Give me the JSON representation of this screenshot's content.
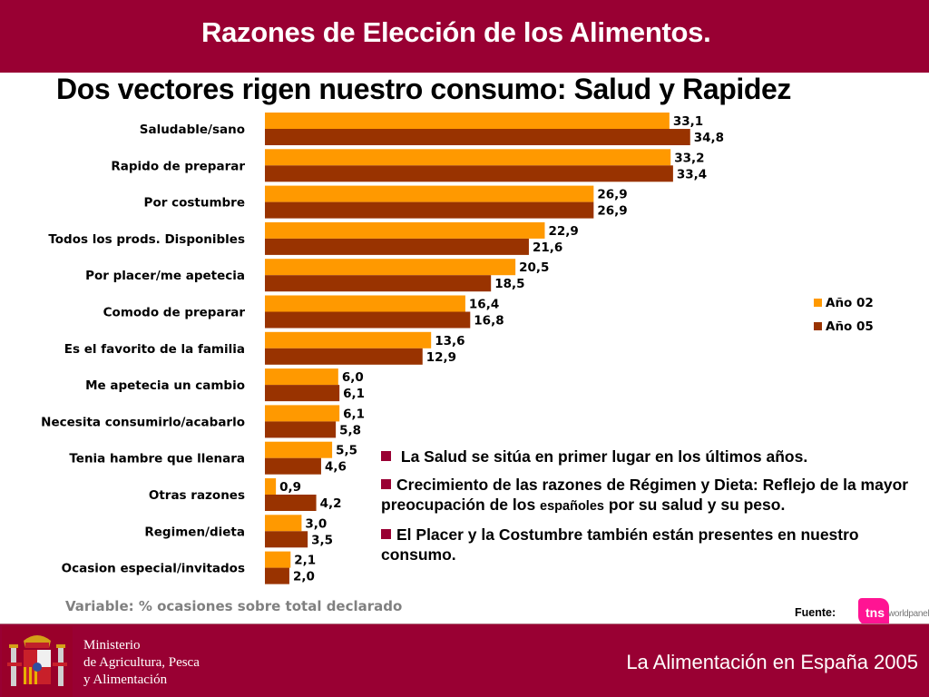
{
  "header": {
    "title": "Razones de Elección de los Alimentos.",
    "subtitle": "Dos vectores rigen nuestro consumo: Salud y Rapidez"
  },
  "colors": {
    "brand": "#990033",
    "series_02": "#ff9900",
    "series_05": "#993300",
    "tns_pink": "#ff1493"
  },
  "chart_data": {
    "type": "bar",
    "orientation": "horizontal",
    "title": "",
    "xlabel": "",
    "ylabel": "",
    "categories": [
      "Saludable/sano",
      "Rapido de preparar",
      "Por costumbre",
      "Todos los prods. Disponibles",
      "Por placer/me apetecia",
      "Comodo de preparar",
      "Es el favorito de la familia",
      "Me apetecia un cambio",
      "Necesita consumirlo/acabarlo",
      "Tenia hambre que llenara",
      "Otras razones",
      "Regimen/dieta",
      "Ocasion especial/invitados"
    ],
    "series": [
      {
        "name": "Año  02",
        "color": "#ff9900",
        "values": [
          33.1,
          33.2,
          26.9,
          22.9,
          20.5,
          16.4,
          13.6,
          6.0,
          6.1,
          5.5,
          0.9,
          3.0,
          2.1
        ],
        "labels": [
          "33,1",
          "33,2",
          "26,9",
          "22,9",
          "20,5",
          "16,4",
          "13,6",
          "6,0",
          "6,1",
          "5,5",
          "0,9",
          "3,0",
          "2,1"
        ]
      },
      {
        "name": "Año 05",
        "color": "#993300",
        "values": [
          34.8,
          33.4,
          26.9,
          21.6,
          18.5,
          16.8,
          12.9,
          6.1,
          5.8,
          4.6,
          4.2,
          3.5,
          2.0
        ],
        "labels": [
          "34,8",
          "33,4",
          "26,9",
          "21,6",
          "18,5",
          "16,8",
          "12,9",
          "6,1",
          "5,8",
          "4,6",
          "4,2",
          "3,5",
          "2,0"
        ]
      }
    ],
    "xlim": [
      0,
      50
    ],
    "grid": false,
    "legend_position": "right"
  },
  "bullets": {
    "b1": "La Salud se sitúa en primer lugar en los últimos años.",
    "b2_part1": "Crecimiento de las razones de Régimen y Dieta: Reflejo de la mayor preocupación de los ",
    "b2_small": "españoles",
    "b2_part2": " por su salud y su peso.",
    "b3": "El Placer y la Costumbre también están presentes en nuestro consumo."
  },
  "footer": {
    "variable_note": "Variable: % ocasiones sobre total declarado",
    "source_label": "Fuente:",
    "source_logo_main": "tns",
    "source_logo_sub": "worldpanel",
    "ministry_line1": "Ministerio",
    "ministry_line2": "de Agricultura, Pesca",
    "ministry_line3": "y Alimentación",
    "publication_title": "La Alimentación en España 2005"
  }
}
